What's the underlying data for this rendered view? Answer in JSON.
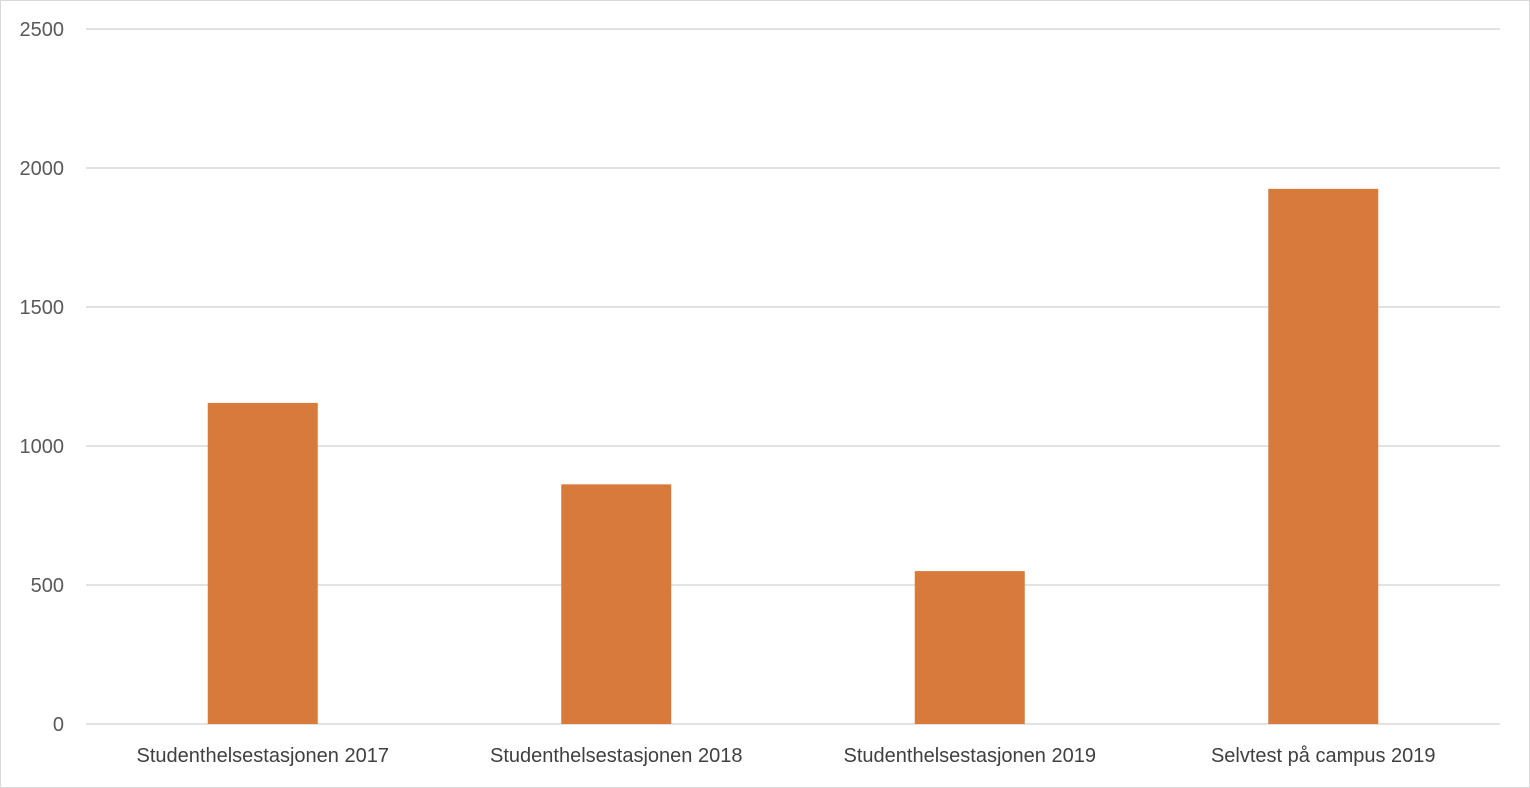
{
  "chart_data": {
    "type": "bar",
    "categories": [
      "Studenthelsestasjonen 2017",
      "Studenthelsestasjonen 2018",
      "Studenthelsestasjonen 2019",
      "Selvtest på campus 2019"
    ],
    "values": [
      1155,
      862,
      550,
      1925
    ],
    "ylim": [
      0,
      2500
    ],
    "yticks": [
      0,
      500,
      1000,
      1500,
      2000,
      2500
    ],
    "grid": true,
    "bar_color": "#d77a3b",
    "title": "",
    "xlabel": "",
    "ylabel": ""
  }
}
